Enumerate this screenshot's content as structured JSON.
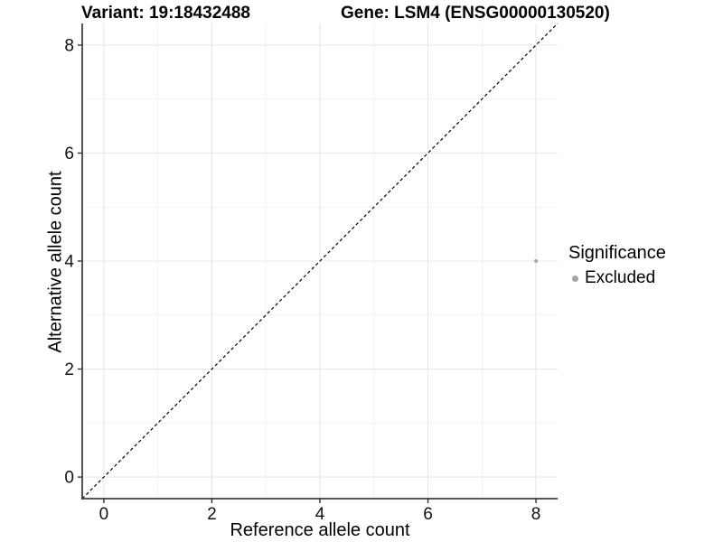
{
  "chart_data": {
    "type": "scatter",
    "titles": {
      "variant": "Variant: 19:18432488",
      "gene": "Gene: LSM4 (ENSG00000130520)"
    },
    "xlabel": "Reference allele count",
    "ylabel": "Alternative allele count",
    "xlim": [
      -0.4,
      8.4
    ],
    "ylim": [
      -0.4,
      8.4
    ],
    "x_ticks": [
      0,
      2,
      4,
      6,
      8
    ],
    "y_ticks": [
      0,
      2,
      4,
      6,
      8
    ],
    "grid": {
      "major": true,
      "minor": true
    },
    "reference_line": {
      "kind": "identity y=x",
      "style": "dashed",
      "color": "#000000"
    },
    "series": [
      {
        "name": "Excluded",
        "color": "#a5a5a5",
        "points": [
          [
            8,
            4
          ]
        ]
      }
    ],
    "legend": {
      "title": "Significance",
      "position": "right",
      "entries": [
        {
          "label": "Excluded",
          "color": "#a5a5a5",
          "marker": "circle-icon"
        }
      ]
    }
  }
}
